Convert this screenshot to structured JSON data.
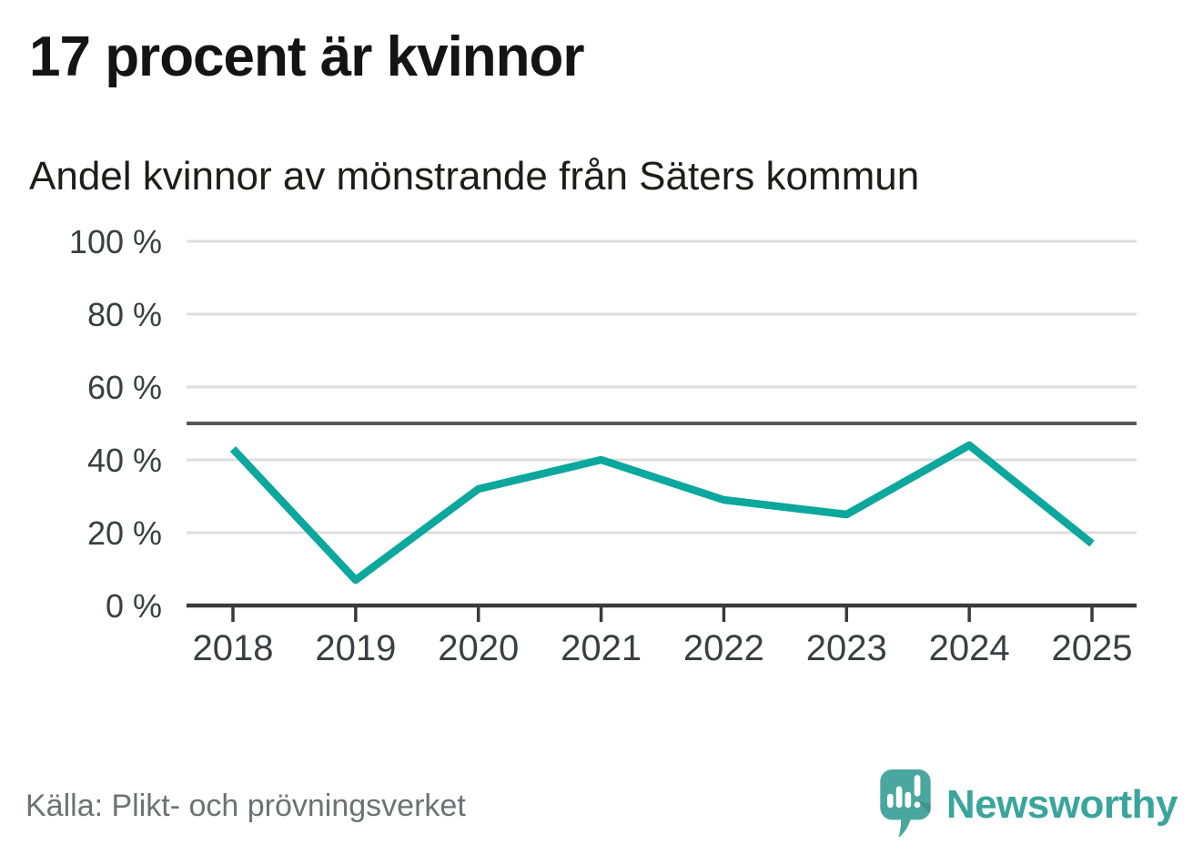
{
  "header": {
    "title": "17 procent är kvinnor",
    "subtitle": "Andel kvinnor av mönstrande från Säters kommun"
  },
  "chart_data": {
    "type": "line",
    "title": "17 procent är kvinnor",
    "subtitle": "Andel kvinnor av mönstrande från Säters kommun",
    "categories": [
      "2018",
      "2019",
      "2020",
      "2021",
      "2022",
      "2023",
      "2024",
      "2025"
    ],
    "series": [
      {
        "name": "Andel kvinnor av mönstrande",
        "values": [
          43,
          7,
          32,
          40,
          29,
          25,
          44,
          17
        ]
      }
    ],
    "unit": "%",
    "ylim": [
      0,
      100
    ],
    "yticks": [
      0,
      20,
      40,
      60,
      80,
      100
    ],
    "ytick_labels": [
      "0 %",
      "20 %",
      "40 %",
      "60 %",
      "80 %",
      "100 %"
    ],
    "reference_line": 50,
    "grid": true,
    "legend": "none"
  },
  "footer": {
    "source": "Källa: Plikt- och prövningsverket",
    "brand": "Newsworthy"
  },
  "colors": {
    "line": "#0ca79d",
    "reference_line": "#55565a",
    "axis": "#3a3a3c",
    "grid": "#dedede",
    "tick_label": "#3b3e42",
    "brand_teal": "#3aa59c",
    "logo_bubble": "#4aa79f"
  }
}
